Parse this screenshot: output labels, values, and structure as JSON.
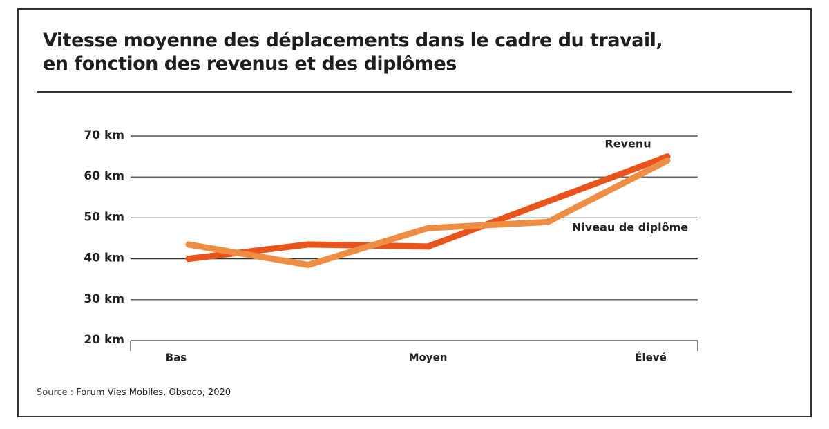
{
  "header": {
    "title_line1": "Vitesse moyenne des déplacements dans le cadre du travail,",
    "title_line2": "en fonction des revenus et des diplômes"
  },
  "chart_data": {
    "type": "line",
    "title": "Vitesse moyenne des déplacements dans le cadre du travail, en fonction des revenus et des diplômes",
    "xlabel": "",
    "ylabel": "",
    "categories": [
      "Bas",
      "Moyen",
      "Élevé"
    ],
    "x": [
      0,
      1,
      2,
      3,
      4
    ],
    "x_tick_positions": [
      0,
      2,
      4
    ],
    "ylim": [
      20,
      70
    ],
    "y_ticks": [
      20,
      30,
      40,
      50,
      60,
      70
    ],
    "y_tick_labels": [
      "20 km",
      "30 km",
      "40 km",
      "50 km",
      "60 km",
      "70 km"
    ],
    "grid": true,
    "series": [
      {
        "name": "Revenu",
        "color": "#E8541C",
        "values": [
          40,
          43.5,
          43,
          54,
          65
        ]
      },
      {
        "name": "Niveau de diplôme",
        "color": "#EE8E45",
        "values": [
          43.5,
          38.5,
          47.5,
          49,
          64
        ]
      }
    ]
  },
  "source": {
    "prefix": "Source : ",
    "text": "Forum Vies Mobiles, Obsoco, 2020"
  }
}
